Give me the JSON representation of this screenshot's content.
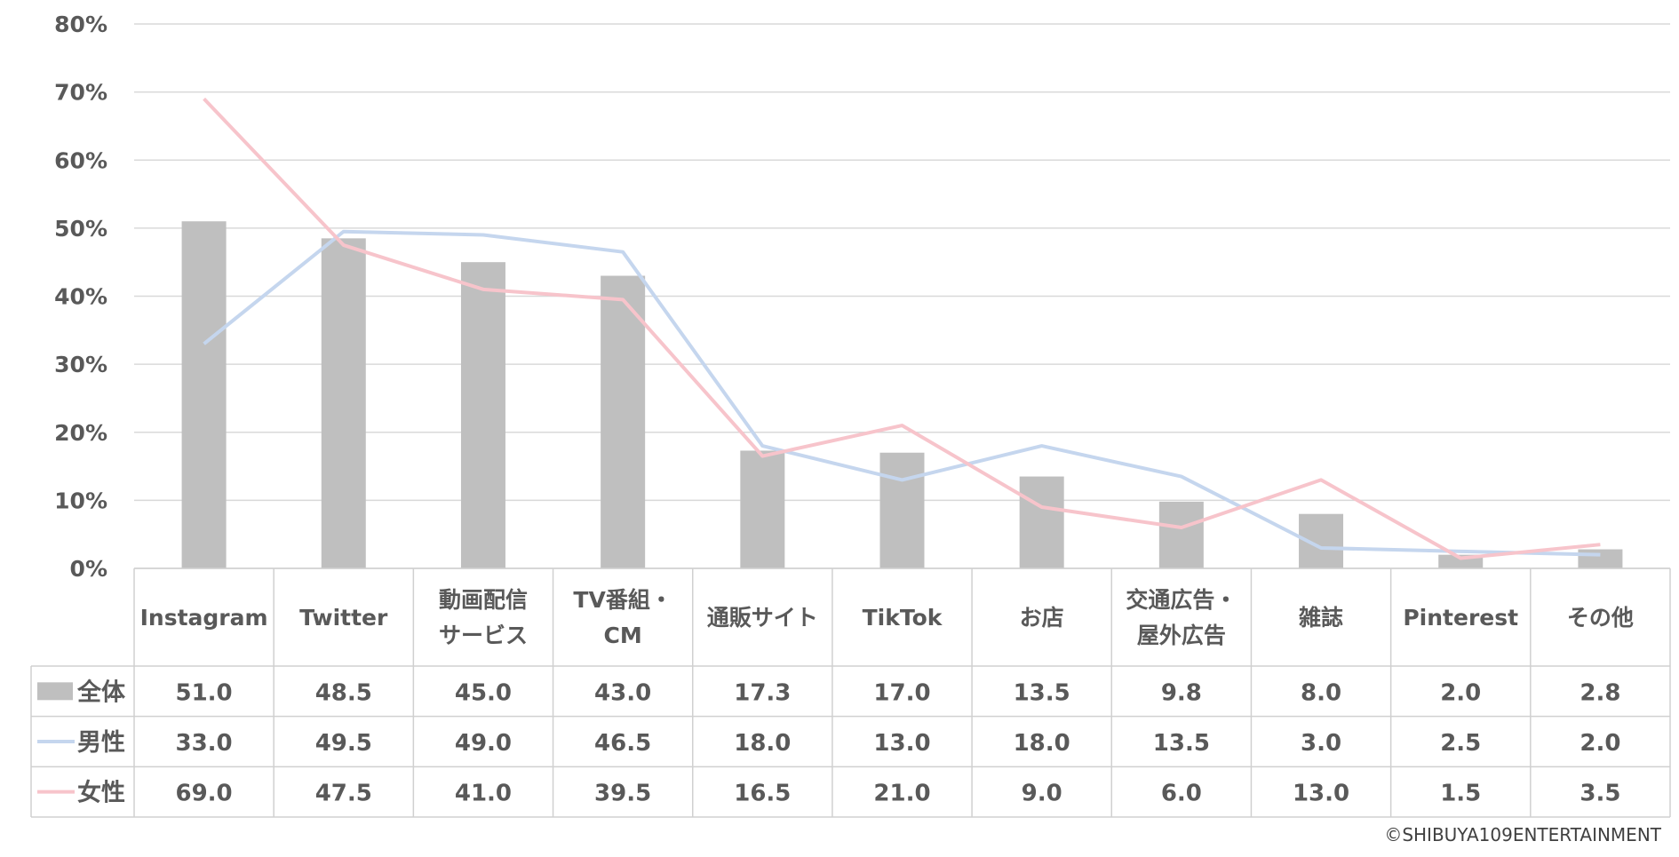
{
  "chart_data": {
    "type": "bar",
    "categories": [
      [
        "Instagram"
      ],
      [
        "Twitter"
      ],
      [
        "動画配信",
        "サービス"
      ],
      [
        "TV番組・",
        "CM"
      ],
      [
        "通販サイト"
      ],
      [
        "TikTok"
      ],
      [
        "お店"
      ],
      [
        "交通広告・",
        "屋外広告"
      ],
      [
        "雑誌"
      ],
      [
        "Pinterest"
      ],
      [
        "その他"
      ]
    ],
    "series": [
      {
        "name": "全体",
        "type": "bar",
        "color": "#bfbfbf",
        "values": [
          51.0,
          48.5,
          45.0,
          43.0,
          17.3,
          17.0,
          13.5,
          9.8,
          8.0,
          2.0,
          2.8
        ],
        "labels": [
          "51.0",
          "48.5",
          "45.0",
          "43.0",
          "17.3",
          "17.0",
          "13.5",
          "9.8",
          "8.0",
          "2.0",
          "2.8"
        ]
      },
      {
        "name": "男性",
        "type": "line",
        "color": "#c5d6ee",
        "values": [
          33.0,
          49.5,
          49.0,
          46.5,
          18.0,
          13.0,
          18.0,
          13.5,
          3.0,
          2.5,
          2.0
        ],
        "labels": [
          "33.0",
          "49.5",
          "49.0",
          "46.5",
          "18.0",
          "13.0",
          "18.0",
          "13.5",
          "3.0",
          "2.5",
          "2.0"
        ]
      },
      {
        "name": "女性",
        "type": "line",
        "color": "#f7c4cb",
        "values": [
          69.0,
          47.5,
          41.0,
          39.5,
          16.5,
          21.0,
          9.0,
          6.0,
          13.0,
          1.5,
          3.5
        ],
        "labels": [
          "69.0",
          "47.5",
          "41.0",
          "39.5",
          "16.5",
          "21.0",
          "9.0",
          "6.0",
          "13.0",
          "1.5",
          "3.5"
        ]
      }
    ],
    "y_ticks": [
      "0%",
      "10%",
      "20%",
      "30%",
      "40%",
      "50%",
      "60%",
      "70%",
      "80%"
    ],
    "ylim": [
      0,
      80
    ],
    "grid": true,
    "legend": "data-table"
  },
  "copyright": "©SHIBUYA109ENTERTAINMENT"
}
